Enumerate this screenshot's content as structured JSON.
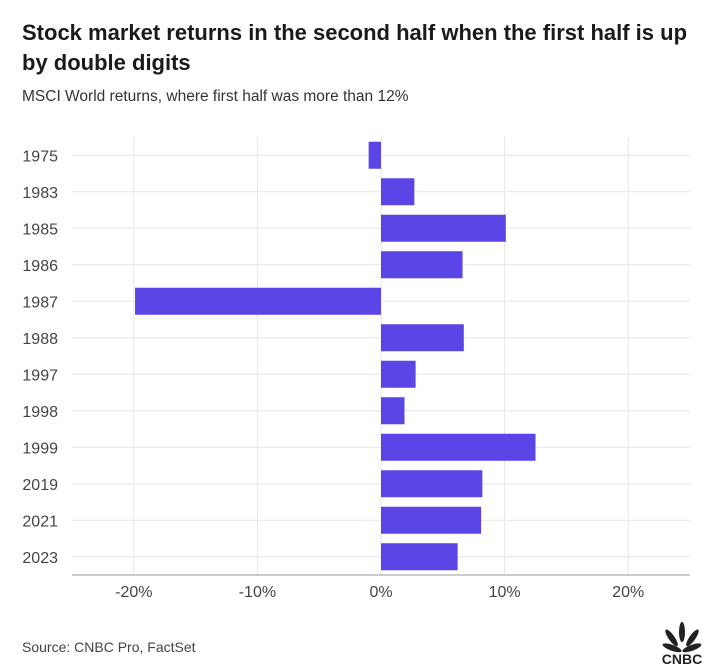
{
  "title": "Stock market returns in the second half when the first half is up by double digits",
  "subtitle": "MSCI World returns, where first half was more than 12%",
  "source": "Source: CNBC Pro, FactSet",
  "logo_text": "CNBC",
  "colors": {
    "bar": "#5b45e6",
    "grid": "#e6e6e6",
    "tick": "#444444"
  },
  "chart_data": {
    "type": "bar",
    "orientation": "horizontal",
    "categories": [
      "1975",
      "1983",
      "1985",
      "1986",
      "1987",
      "1988",
      "1997",
      "1998",
      "1999",
      "2019",
      "2021",
      "2023"
    ],
    "values": [
      -1.0,
      2.7,
      10.1,
      6.6,
      -19.9,
      6.7,
      2.8,
      1.9,
      12.5,
      8.2,
      8.1,
      6.2
    ],
    "xlim": [
      -25,
      25
    ],
    "x_ticks": [
      -20,
      -10,
      0,
      10,
      20
    ],
    "x_tick_labels": [
      "-20%",
      "-10%",
      "0%",
      "10%",
      "20%"
    ],
    "title": "Stock market returns in the second half when the first half is up by double digits",
    "xlabel": "",
    "ylabel": "",
    "grid": true
  }
}
